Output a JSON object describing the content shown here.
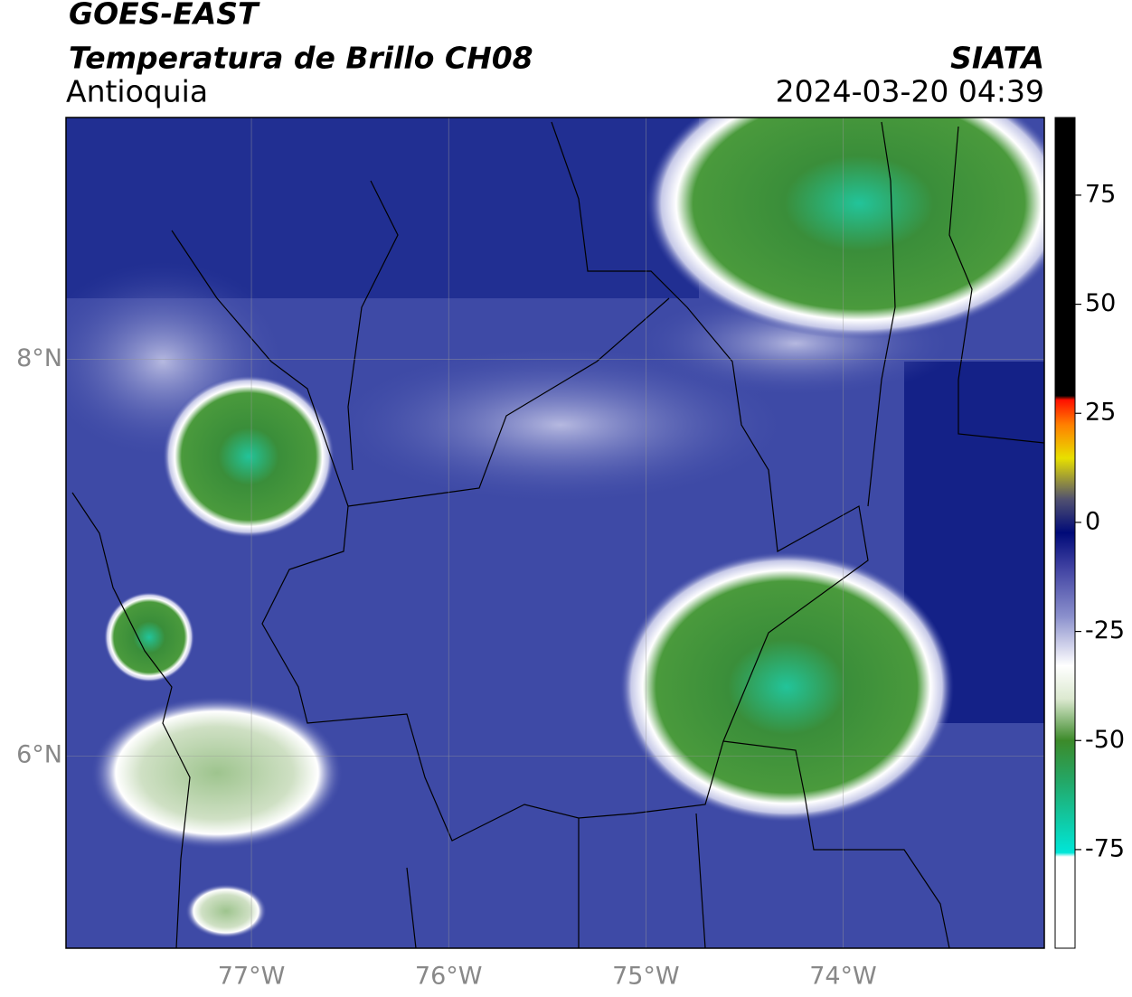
{
  "header": {
    "title": "GOES-EAST",
    "subtitle": "Temperatura de Brillo CH08",
    "region": "Antioquia",
    "source": "SIATA",
    "datetime": "2024-03-20 04:39"
  },
  "map": {
    "xlim": [
      -77.94,
      -72.98
    ],
    "ylim": [
      5.03,
      9.22
    ],
    "xticks": [
      {
        "value": -77,
        "label": "77°W"
      },
      {
        "value": -76,
        "label": "76°W"
      },
      {
        "value": -75,
        "label": "75°W"
      },
      {
        "value": -74,
        "label": "74°W"
      }
    ],
    "yticks": [
      {
        "value": 8,
        "label": "8°N"
      },
      {
        "value": 6,
        "label": "6°N"
      }
    ]
  },
  "colorbar": {
    "lim": [
      -97.6,
      92.8
    ],
    "ticks": [
      75,
      50,
      25,
      0,
      -25,
      -50,
      -75
    ]
  }
}
